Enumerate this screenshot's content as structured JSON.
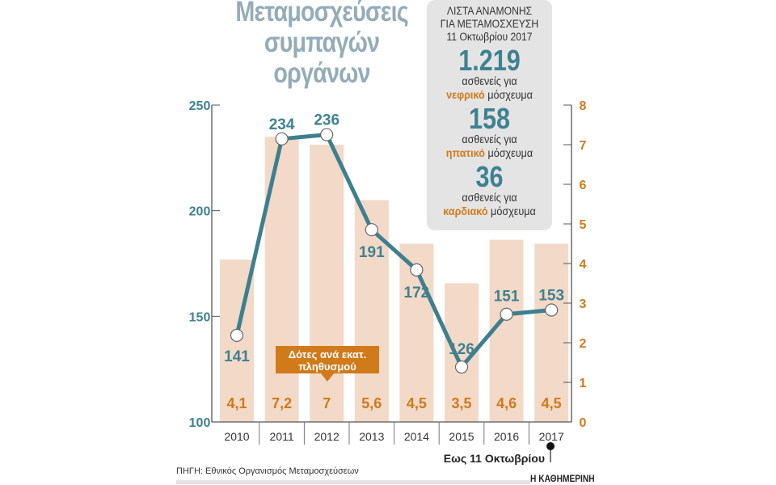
{
  "title_lines": [
    "Μεταμοσχεύσεις",
    "συμπαγών οργάνων"
  ],
  "waiting_list": {
    "heading": [
      "ΛΙΣΤΑ ΑΝΑΜΟΝΗΣ",
      "ΓΙΑ ΜΕΤΑΜΟΣΧΕΥΣΗ",
      "11 Οκτωβρίου 2017"
    ],
    "items": [
      {
        "count": "1.219",
        "text": "ασθενείς για",
        "organ": "νεφρικό",
        "suffix": "μόσχευμα"
      },
      {
        "count": "158",
        "text": "ασθενείς για",
        "organ": "ηπατικό",
        "suffix": "μόσχευμα"
      },
      {
        "count": "36",
        "text": "ασθενείς για",
        "organ": "καρδιακό",
        "suffix": "μόσχευμα"
      }
    ]
  },
  "chart_data": {
    "type": "bar+line",
    "categories": [
      "2010",
      "2011",
      "2012",
      "2013",
      "2014",
      "2015",
      "2016",
      "2017"
    ],
    "line": {
      "values": [
        141,
        234,
        236,
        191,
        172,
        126,
        151,
        153
      ],
      "axis": "left",
      "ylim": [
        100,
        250
      ],
      "ticks": [
        100,
        150,
        200,
        250
      ],
      "color": "#3e7f8f"
    },
    "bars": {
      "name": "Δότες ανά εκατ. πληθυσμού",
      "labels": [
        "4,1",
        "7,2",
        "7",
        "5,6",
        "4,5",
        "3,5",
        "4,6",
        "4,5"
      ],
      "values": [
        4.1,
        7.2,
        7,
        5.6,
        4.5,
        3.5,
        4.6,
        4.5
      ],
      "axis": "right",
      "ylim": [
        0,
        8
      ],
      "ticks": [
        0,
        1,
        2,
        3,
        4,
        5,
        6,
        7,
        8
      ],
      "color": "#f2d9c8",
      "label_color": "#d07a1a"
    },
    "callout": [
      "Δότες ανά εκατ.",
      "πληθυσμού"
    ],
    "annotation": "Εως 11 Οκτωβρίου"
  },
  "source": "ΠΗΓΗ: Εθνικός Οργανισμός Μεταμοσχεύσεων",
  "brand": "Η ΚΑΘΗΜΕΡΙΝΗ"
}
